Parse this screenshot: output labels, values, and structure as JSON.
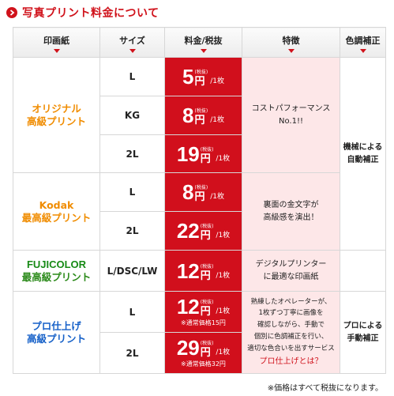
{
  "title": "写真プリント料金について",
  "headers": {
    "paper": "印画紙",
    "size": "サイズ",
    "fee": "料金/税抜",
    "feature": "特徴",
    "tone": "色調補正"
  },
  "groups": {
    "original": {
      "line1": "オリジナル",
      "line2": "高級プリント"
    },
    "kodak": {
      "line1": "Kodak",
      "line2": "最高級プリント"
    },
    "fuji": {
      "line1": "FUJICOLOR",
      "line2": "最高級プリント"
    },
    "pro": {
      "line1": "プロ仕上げ",
      "line2": "高級プリント"
    }
  },
  "rows": [
    {
      "size": "L",
      "price": "5",
      "unit": "円",
      "tax": "(税抜)",
      "per": "/1枚"
    },
    {
      "size": "KG",
      "price": "8",
      "unit": "円",
      "tax": "(税抜)",
      "per": "/1枚"
    },
    {
      "size": "2L",
      "price": "19",
      "unit": "円",
      "tax": "(税抜)",
      "per": "/1枚"
    },
    {
      "size": "L",
      "price": "8",
      "unit": "円",
      "tax": "(税抜)",
      "per": "/1枚"
    },
    {
      "size": "2L",
      "price": "22",
      "unit": "円",
      "tax": "(税抜)",
      "per": "/1枚"
    },
    {
      "size": "L/DSC/LW",
      "price": "12",
      "unit": "円",
      "tax": "(税抜)",
      "per": "/1枚"
    },
    {
      "size": "L",
      "price": "12",
      "unit": "円",
      "tax": "(税抜)",
      "per": "/1枚",
      "regular": "※通常価格15円"
    },
    {
      "size": "2L",
      "price": "29",
      "unit": "円",
      "tax": "(税抜)",
      "per": "/1枚",
      "regular": "※通常価格32円"
    }
  ],
  "features": {
    "original": {
      "line1": "コストパフォーマンス",
      "line2": "No.1!!"
    },
    "kodak": {
      "line1": "裏面の金文字が",
      "line2": "高級感を演出！"
    },
    "fuji": {
      "line1": "デジタルプリンター",
      "line2": "に最適な印画紙"
    },
    "pro": {
      "line1": "熟練したオペレーターが、",
      "line2": "1枚ずつ丁寧に画像を",
      "line3": "確認しながら、手動で",
      "line4": "個別に色調補正を行い、",
      "line5": "適切な色合いを出すサービス",
      "link": "プロ仕上げとは？"
    }
  },
  "tone": {
    "auto": {
      "line1": "機械による",
      "line2": "自動補正"
    },
    "manual": {
      "line1": "プロによる",
      "line2": "手動補正"
    }
  },
  "footnote": "※価格はすべて税抜になります。",
  "colors": {
    "accent": "#d0121b",
    "price_bg": "#d10f1c",
    "feature_bg": "#fde7e8"
  }
}
